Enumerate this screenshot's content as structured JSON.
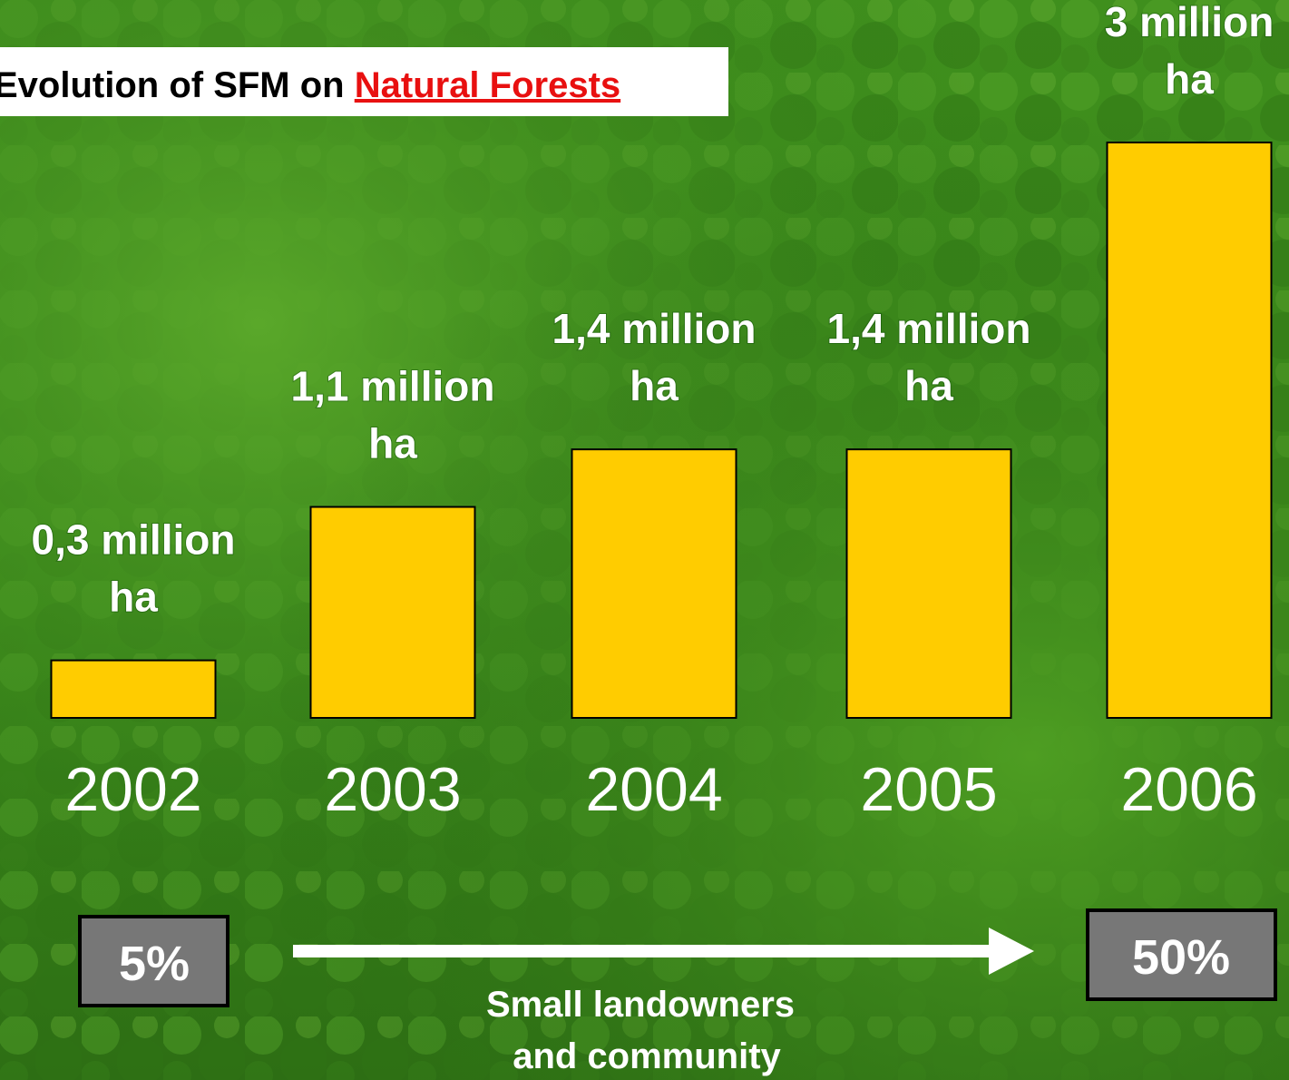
{
  "chart_data": {
    "type": "bar",
    "title": "Evolution of SFM on",
    "title_highlight": "Natural Forests",
    "categories": [
      "2002",
      "2003",
      "2004",
      "2005",
      "2006"
    ],
    "values": [
      0.3,
      1.1,
      1.4,
      1.4,
      3
    ],
    "value_labels": [
      "0,3 million ha",
      "1,1 million ha",
      "1,4 million ha",
      "1,4 million ha",
      "3 million ha"
    ],
    "color": "#ffcc00",
    "ylim": [
      0,
      3
    ],
    "start_share": "5%",
    "end_share": "50%",
    "trend_label": [
      "Small landowners",
      "and community"
    ]
  }
}
